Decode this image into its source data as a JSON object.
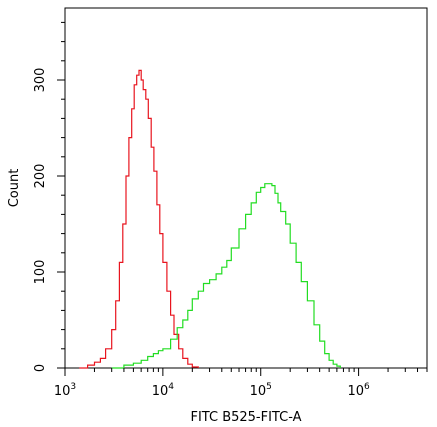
{
  "chart_data": {
    "type": "line",
    "title": "",
    "xlabel": "FITC B525-FITC-A",
    "ylabel": "Count",
    "x_scale": "log",
    "xlim": [
      1000,
      5000000
    ],
    "ylim": [
      0,
      375
    ],
    "x_ticks": [
      {
        "value": 1000,
        "base": "10",
        "exp": "3"
      },
      {
        "value": 10000,
        "base": "10",
        "exp": "4"
      },
      {
        "value": 100000,
        "base": "10",
        "exp": "5"
      },
      {
        "value": 1000000,
        "base": "10",
        "exp": "6"
      }
    ],
    "y_ticks": [
      {
        "value": 0,
        "label": "0"
      },
      {
        "value": 100,
        "label": "100"
      },
      {
        "value": 200,
        "label": "200"
      },
      {
        "value": 300,
        "label": "300"
      }
    ],
    "grid": false,
    "series": [
      {
        "color": "#e8141e",
        "points": [
          [
            1400,
            0
          ],
          [
            1700,
            3
          ],
          [
            2000,
            6
          ],
          [
            2300,
            10
          ],
          [
            2600,
            20
          ],
          [
            3000,
            40
          ],
          [
            3300,
            70
          ],
          [
            3600,
            110
          ],
          [
            3900,
            150
          ],
          [
            4200,
            200
          ],
          [
            4500,
            240
          ],
          [
            4800,
            270
          ],
          [
            5100,
            295
          ],
          [
            5400,
            305
          ],
          [
            5700,
            310
          ],
          [
            6000,
            300
          ],
          [
            6300,
            290
          ],
          [
            6700,
            280
          ],
          [
            7100,
            260
          ],
          [
            7600,
            230
          ],
          [
            8100,
            205
          ],
          [
            8700,
            170
          ],
          [
            9300,
            140
          ],
          [
            10000,
            110
          ],
          [
            11000,
            80
          ],
          [
            12000,
            55
          ],
          [
            13000,
            35
          ],
          [
            14500,
            20
          ],
          [
            16000,
            10
          ],
          [
            18000,
            4
          ],
          [
            20000,
            1
          ],
          [
            23000,
            0
          ]
        ]
      },
      {
        "color": "#22dd22",
        "points": [
          [
            3000,
            0
          ],
          [
            4000,
            3
          ],
          [
            5000,
            5
          ],
          [
            6000,
            8
          ],
          [
            7000,
            12
          ],
          [
            8000,
            15
          ],
          [
            9000,
            18
          ],
          [
            10000,
            20
          ],
          [
            12000,
            30
          ],
          [
            14000,
            42
          ],
          [
            16000,
            50
          ],
          [
            18000,
            60
          ],
          [
            20000,
            72
          ],
          [
            23000,
            80
          ],
          [
            26000,
            88
          ],
          [
            30000,
            92
          ],
          [
            35000,
            98
          ],
          [
            40000,
            105
          ],
          [
            45000,
            112
          ],
          [
            50000,
            125
          ],
          [
            60000,
            145
          ],
          [
            70000,
            160
          ],
          [
            80000,
            172
          ],
          [
            90000,
            183
          ],
          [
            100000,
            188
          ],
          [
            110000,
            192
          ],
          [
            120000,
            192
          ],
          [
            130000,
            190
          ],
          [
            140000,
            182
          ],
          [
            150000,
            172
          ],
          [
            160000,
            163
          ],
          [
            180000,
            150
          ],
          [
            200000,
            130
          ],
          [
            230000,
            110
          ],
          [
            260000,
            90
          ],
          [
            300000,
            70
          ],
          [
            350000,
            45
          ],
          [
            400000,
            28
          ],
          [
            450000,
            15
          ],
          [
            500000,
            8
          ],
          [
            550000,
            4
          ],
          [
            600000,
            2
          ],
          [
            650000,
            0
          ]
        ]
      }
    ]
  }
}
